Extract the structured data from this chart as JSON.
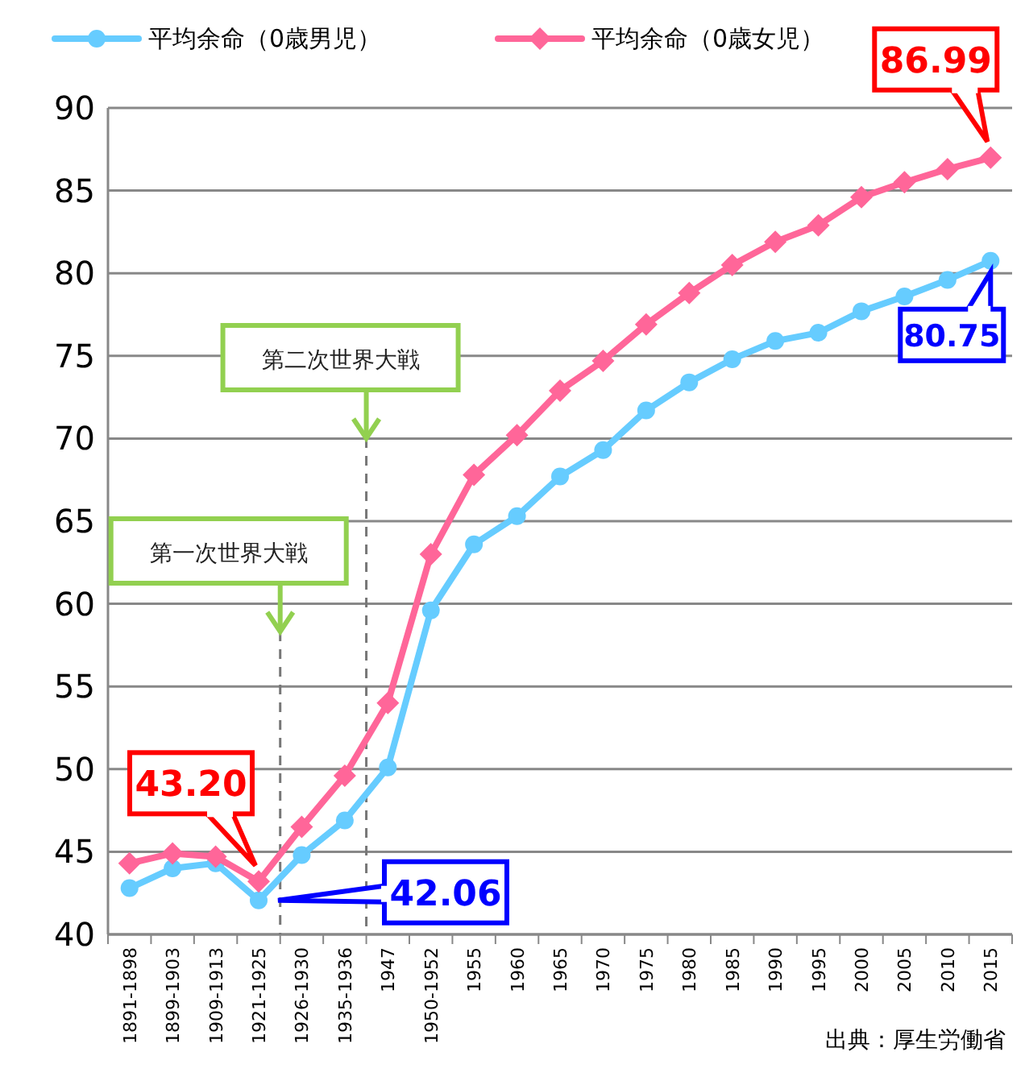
{
  "chart_data": {
    "type": "line",
    "categories": [
      "1891-1898",
      "1899-1903",
      "1909-1913",
      "1921-1925",
      "1926-1930",
      "1935-1936",
      "1947",
      "1950-1952",
      "1955",
      "1960",
      "1965",
      "1970",
      "1975",
      "1980",
      "1985",
      "1990",
      "1995",
      "2000",
      "2005",
      "2010",
      "2015"
    ],
    "series": [
      {
        "name": "平均余命（0歳男児）",
        "color": "#66ccff",
        "marker": "circle",
        "values": [
          42.8,
          44.0,
          44.3,
          42.06,
          44.8,
          46.9,
          50.1,
          59.6,
          63.6,
          65.3,
          67.7,
          69.3,
          71.7,
          73.4,
          74.8,
          75.9,
          76.4,
          77.7,
          78.6,
          79.6,
          80.75
        ],
        "value_labels": [
          null,
          null,
          null,
          "42.06",
          null,
          null,
          null,
          null,
          null,
          null,
          null,
          null,
          null,
          null,
          null,
          null,
          null,
          null,
          null,
          null,
          "80.75"
        ]
      },
      {
        "name": "平均余命（0歳女児）",
        "color": "#ff6699",
        "marker": "diamond",
        "values": [
          44.3,
          44.9,
          44.7,
          43.2,
          46.5,
          49.6,
          54.0,
          63.0,
          67.8,
          70.2,
          72.9,
          74.7,
          76.9,
          78.8,
          80.5,
          81.9,
          82.9,
          84.6,
          85.5,
          86.3,
          86.99
        ],
        "value_labels": [
          null,
          null,
          null,
          "43.20",
          null,
          null,
          null,
          null,
          null,
          null,
          null,
          null,
          null,
          null,
          null,
          null,
          null,
          null,
          null,
          null,
          "86.99"
        ]
      }
    ],
    "ylim": [
      40,
      90
    ],
    "yticks": [
      40,
      45,
      50,
      55,
      60,
      65,
      70,
      75,
      80,
      85,
      90
    ],
    "grid": "y",
    "legend": "top left",
    "ref_lines": [
      {
        "axis": "x",
        "value": "1921-1925",
        "label": "第一次世界大戦",
        "color": "#777777",
        "line_style": "dashed"
      },
      {
        "axis": "x",
        "value": "1935-1936",
        "label": "第二次世界大戦",
        "color": "#777777",
        "line_style": "dashed"
      }
    ],
    "annotations": [
      "出典：厚生労働省"
    ]
  }
}
